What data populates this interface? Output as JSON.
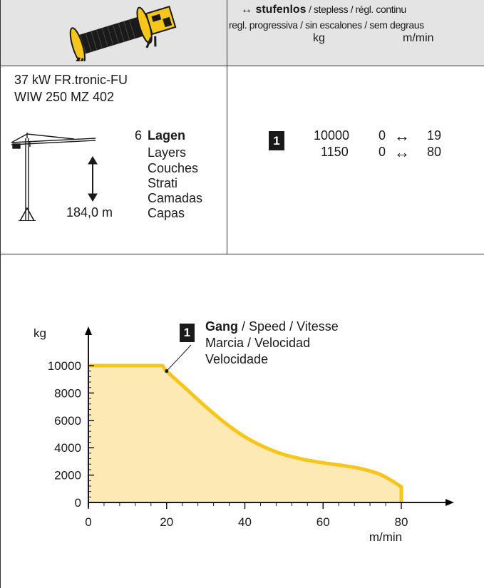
{
  "header": {
    "stepless_main": "stufenlos",
    "stepless_rest": " / stepless / régl. continu",
    "stepless_line2": "regl. progressiva / sin escalones / sem degraus",
    "unit_kg": "kg",
    "unit_speed": "m/min",
    "arrow_glyph": "↔"
  },
  "motor": {
    "line1": "37 kW FR.tronic-FU",
    "line2": "WIW 250 MZ 402"
  },
  "crane": {
    "height": "184,0 m",
    "layer_count": "6",
    "layers": [
      "Lagen",
      "Layers",
      "Couches",
      "Strati",
      "Camadas",
      "Capas"
    ]
  },
  "gear_table": {
    "gear": "1",
    "rows": [
      {
        "load": "10000",
        "v_min": "0",
        "v_max": "19"
      },
      {
        "load": "1150",
        "v_min": "0",
        "v_max": "80"
      }
    ]
  },
  "legend": {
    "gear": "1",
    "bold": "Gang",
    "rest_line1": " / Speed / Vitesse",
    "line2": "Marcia / Velocidad",
    "line3": "Velocidade"
  },
  "colors": {
    "curve": "#f7c61c",
    "fill": "#fde9b4",
    "header_bg": "#e4e4e4"
  },
  "chart_data": {
    "type": "area",
    "xlabel": "m/min",
    "ylabel": "kg",
    "xlim": [
      0,
      80
    ],
    "ylim": [
      0,
      10000
    ],
    "xticks": [
      0,
      20,
      40,
      60,
      80
    ],
    "yticks": [
      0,
      2000,
      4000,
      6000,
      8000,
      10000
    ],
    "series": [
      {
        "x": [
          0,
          19,
          20,
          25,
          30,
          35,
          40,
          45,
          50,
          55,
          60,
          65,
          70,
          75,
          80,
          80
        ],
        "y": [
          10000,
          10000,
          9600,
          8300,
          7000,
          5800,
          4800,
          4050,
          3500,
          3150,
          2900,
          2700,
          2450,
          2000,
          1150,
          0
        ]
      }
    ]
  }
}
